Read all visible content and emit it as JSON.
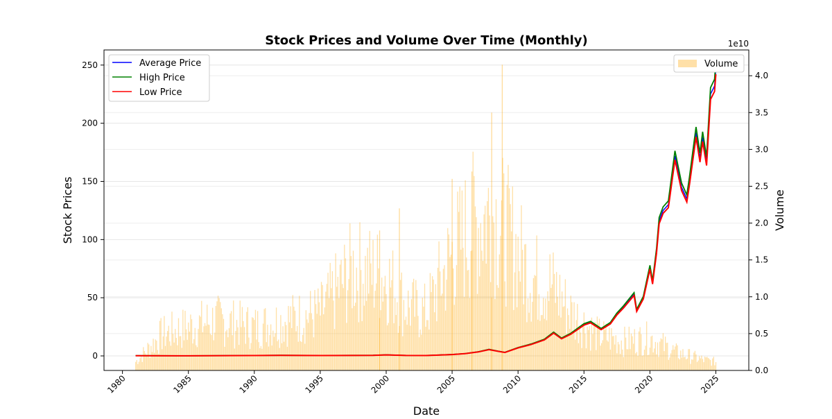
{
  "chart_data": {
    "type": "line",
    "title": "Stock Prices and Volume Over Time (Monthly)",
    "xlabel": "Date",
    "ylabel": "Stock Prices",
    "y2label": "Volume",
    "y2_offset_label": "1e10",
    "xlim": [
      1978.6,
      2027.5
    ],
    "ylim": [
      -12.5,
      263
    ],
    "y2lim": [
      0,
      4.35
    ],
    "x_ticks": [
      1980,
      1985,
      1990,
      1995,
      2000,
      2005,
      2010,
      2015,
      2020,
      2025
    ],
    "y_ticks": [
      0,
      50,
      100,
      150,
      200,
      250
    ],
    "y2_ticks": [
      0.0,
      0.5,
      1.0,
      1.5,
      2.0,
      2.5,
      3.0,
      3.5,
      4.0
    ],
    "grid": "horizontal",
    "legend_left": {
      "placement": "top-left",
      "entries": [
        "Average Price",
        "High Price",
        "Low Price"
      ]
    },
    "legend_right": {
      "placement": "top-right",
      "entries": [
        "Volume"
      ]
    },
    "colors": {
      "average": "#0000ff",
      "high": "#008000",
      "low": "#ff0000",
      "volume": "#ffa500"
    },
    "price_points": [
      {
        "x": 1981.0,
        "y": 0.2
      },
      {
        "x": 1985.0,
        "y": 0.1
      },
      {
        "x": 1990.0,
        "y": 0.3
      },
      {
        "x": 1992.0,
        "y": 0.5
      },
      {
        "x": 1995.0,
        "y": 0.3
      },
      {
        "x": 1999.0,
        "y": 0.5
      },
      {
        "x": 2000.0,
        "y": 0.9
      },
      {
        "x": 2001.5,
        "y": 0.4
      },
      {
        "x": 2003.0,
        "y": 0.3
      },
      {
        "x": 2005.0,
        "y": 1.2
      },
      {
        "x": 2006.0,
        "y": 2.0
      },
      {
        "x": 2007.0,
        "y": 3.5
      },
      {
        "x": 2007.8,
        "y": 5.5
      },
      {
        "x": 2008.5,
        "y": 4.0
      },
      {
        "x": 2009.0,
        "y": 3.0
      },
      {
        "x": 2010.0,
        "y": 7.0
      },
      {
        "x": 2011.0,
        "y": 10.0
      },
      {
        "x": 2012.0,
        "y": 14.0
      },
      {
        "x": 2012.7,
        "y": 20.0
      },
      {
        "x": 2013.3,
        "y": 15.0
      },
      {
        "x": 2014.0,
        "y": 19.0
      },
      {
        "x": 2015.0,
        "y": 27.0
      },
      {
        "x": 2015.5,
        "y": 29.0
      },
      {
        "x": 2016.3,
        "y": 23.0
      },
      {
        "x": 2017.0,
        "y": 28.0
      },
      {
        "x": 2017.5,
        "y": 36.0
      },
      {
        "x": 2018.0,
        "y": 42.0
      },
      {
        "x": 2018.8,
        "y": 53.0
      },
      {
        "x": 2019.0,
        "y": 39.0
      },
      {
        "x": 2019.5,
        "y": 50.0
      },
      {
        "x": 2020.0,
        "y": 76.0
      },
      {
        "x": 2020.2,
        "y": 63.0
      },
      {
        "x": 2020.5,
        "y": 90.0
      },
      {
        "x": 2020.7,
        "y": 116.0
      },
      {
        "x": 2021.0,
        "y": 125.0
      },
      {
        "x": 2021.4,
        "y": 130.0
      },
      {
        "x": 2021.9,
        "y": 172.0
      },
      {
        "x": 2022.4,
        "y": 145.0
      },
      {
        "x": 2022.8,
        "y": 135.0
      },
      {
        "x": 2023.0,
        "y": 150.0
      },
      {
        "x": 2023.5,
        "y": 192.0
      },
      {
        "x": 2023.8,
        "y": 170.0
      },
      {
        "x": 2024.0,
        "y": 188.0
      },
      {
        "x": 2024.3,
        "y": 167.0
      },
      {
        "x": 2024.6,
        "y": 225.0
      },
      {
        "x": 2024.9,
        "y": 232.0
      },
      {
        "x": 2025.0,
        "y": 247.0
      }
    ],
    "volume_points": [
      {
        "x": 1981.0,
        "y": 0.12
      },
      {
        "x": 1983.0,
        "y": 0.5
      },
      {
        "x": 1985.0,
        "y": 0.6
      },
      {
        "x": 1987.0,
        "y": 0.7
      },
      {
        "x": 1990.0,
        "y": 0.6
      },
      {
        "x": 1995.0,
        "y": 0.8
      },
      {
        "x": 1997.5,
        "y": 1.4
      },
      {
        "x": 2000.0,
        "y": 1.3
      },
      {
        "x": 2001.5,
        "y": 0.9
      },
      {
        "x": 2003.0,
        "y": 0.8
      },
      {
        "x": 2005.0,
        "y": 1.6
      },
      {
        "x": 2006.5,
        "y": 2.0
      },
      {
        "x": 2008.0,
        "y": 2.2
      },
      {
        "x": 2009.5,
        "y": 1.8
      },
      {
        "x": 2011.0,
        "y": 1.3
      },
      {
        "x": 2012.5,
        "y": 1.2
      },
      {
        "x": 2014.0,
        "y": 0.8
      },
      {
        "x": 2016.0,
        "y": 0.5
      },
      {
        "x": 2018.0,
        "y": 0.4
      },
      {
        "x": 2020.0,
        "y": 0.45
      },
      {
        "x": 2022.0,
        "y": 0.25
      },
      {
        "x": 2024.0,
        "y": 0.15
      },
      {
        "x": 2025.0,
        "y": 0.12
      }
    ],
    "volume_spikes": [
      {
        "x": 2005.0,
        "y": 2.6
      },
      {
        "x": 2006.5,
        "y": 2.7
      },
      {
        "x": 2008.0,
        "y": 3.5
      },
      {
        "x": 2008.8,
        "y": 4.15
      },
      {
        "x": 2001.0,
        "y": 2.2
      },
      {
        "x": 1999.5,
        "y": 1.9
      }
    ]
  }
}
